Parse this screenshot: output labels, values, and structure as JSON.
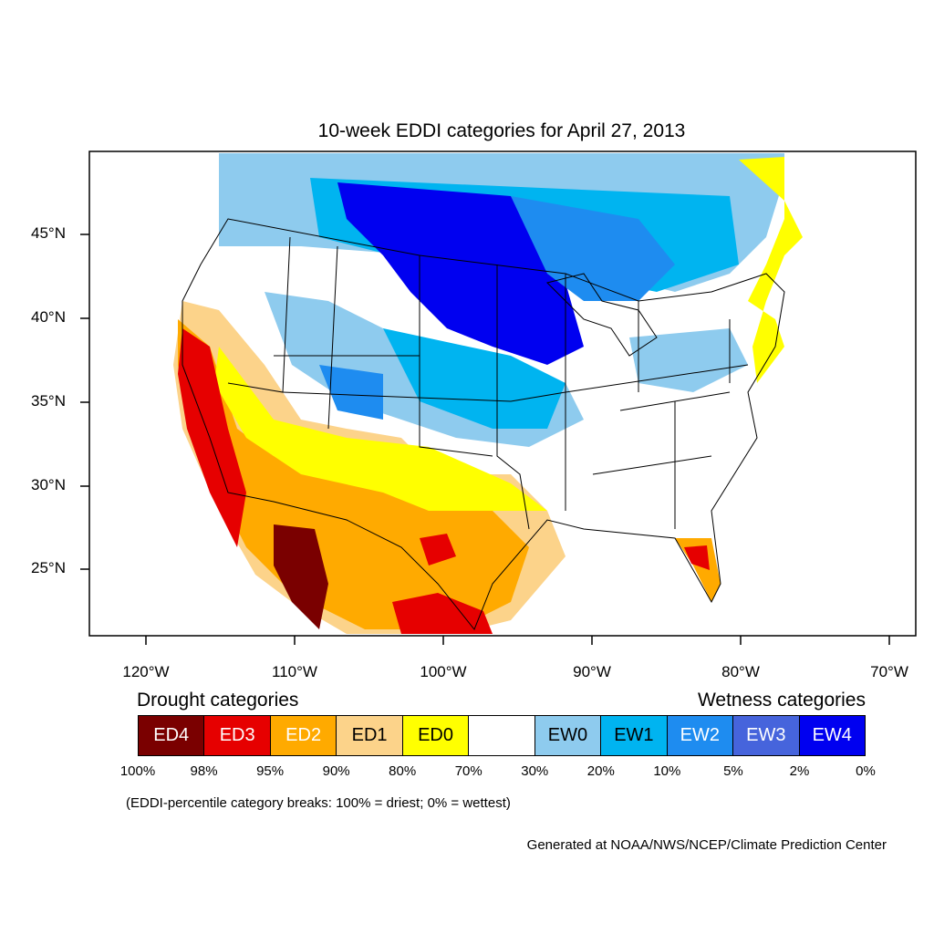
{
  "title": "10-week EDDI categories for April 27, 2013",
  "lat_labels": [
    "45°N",
    "40°N",
    "35°N",
    "30°N",
    "25°N"
  ],
  "lon_labels": [
    "120°W",
    "110°W",
    "100°W",
    "90°W",
    "80°W",
    "70°W"
  ],
  "legend": {
    "drought_heading": "Drought categories",
    "wetness_heading": "Wetness categories",
    "categories": [
      {
        "label": "ED4",
        "color": "#7a0000",
        "text_color": "#ffffff"
      },
      {
        "label": "ED3",
        "color": "#e60000",
        "text_color": "#ffffff"
      },
      {
        "label": "ED2",
        "color": "#ffaa00",
        "text_color": "#ffffff"
      },
      {
        "label": "ED1",
        "color": "#fcd38a",
        "text_color": "#000000"
      },
      {
        "label": "ED0",
        "color": "#ffff00",
        "text_color": "#000000"
      },
      {
        "label": "",
        "color": "#ffffff",
        "text_color": "#000000"
      },
      {
        "label": "EW0",
        "color": "#8ecbee",
        "text_color": "#000000"
      },
      {
        "label": "EW1",
        "color": "#00b4f0",
        "text_color": "#000000"
      },
      {
        "label": "EW2",
        "color": "#1e8cf0",
        "text_color": "#ffffff"
      },
      {
        "label": "EW3",
        "color": "#4664dc",
        "text_color": "#ffffff"
      },
      {
        "label": "EW4",
        "color": "#0000f0",
        "text_color": "#ffffff"
      }
    ],
    "percentiles": [
      "100%",
      "98%",
      "95%",
      "90%",
      "80%",
      "70%",
      "30%",
      "20%",
      "10%",
      "5%",
      "2%",
      "0%"
    ]
  },
  "note": "(EDDI-percentile category breaks: 100% = driest; 0% = wettest)",
  "credit": "Generated at NOAA/NWS/NCEP/Climate Prediction Center"
}
